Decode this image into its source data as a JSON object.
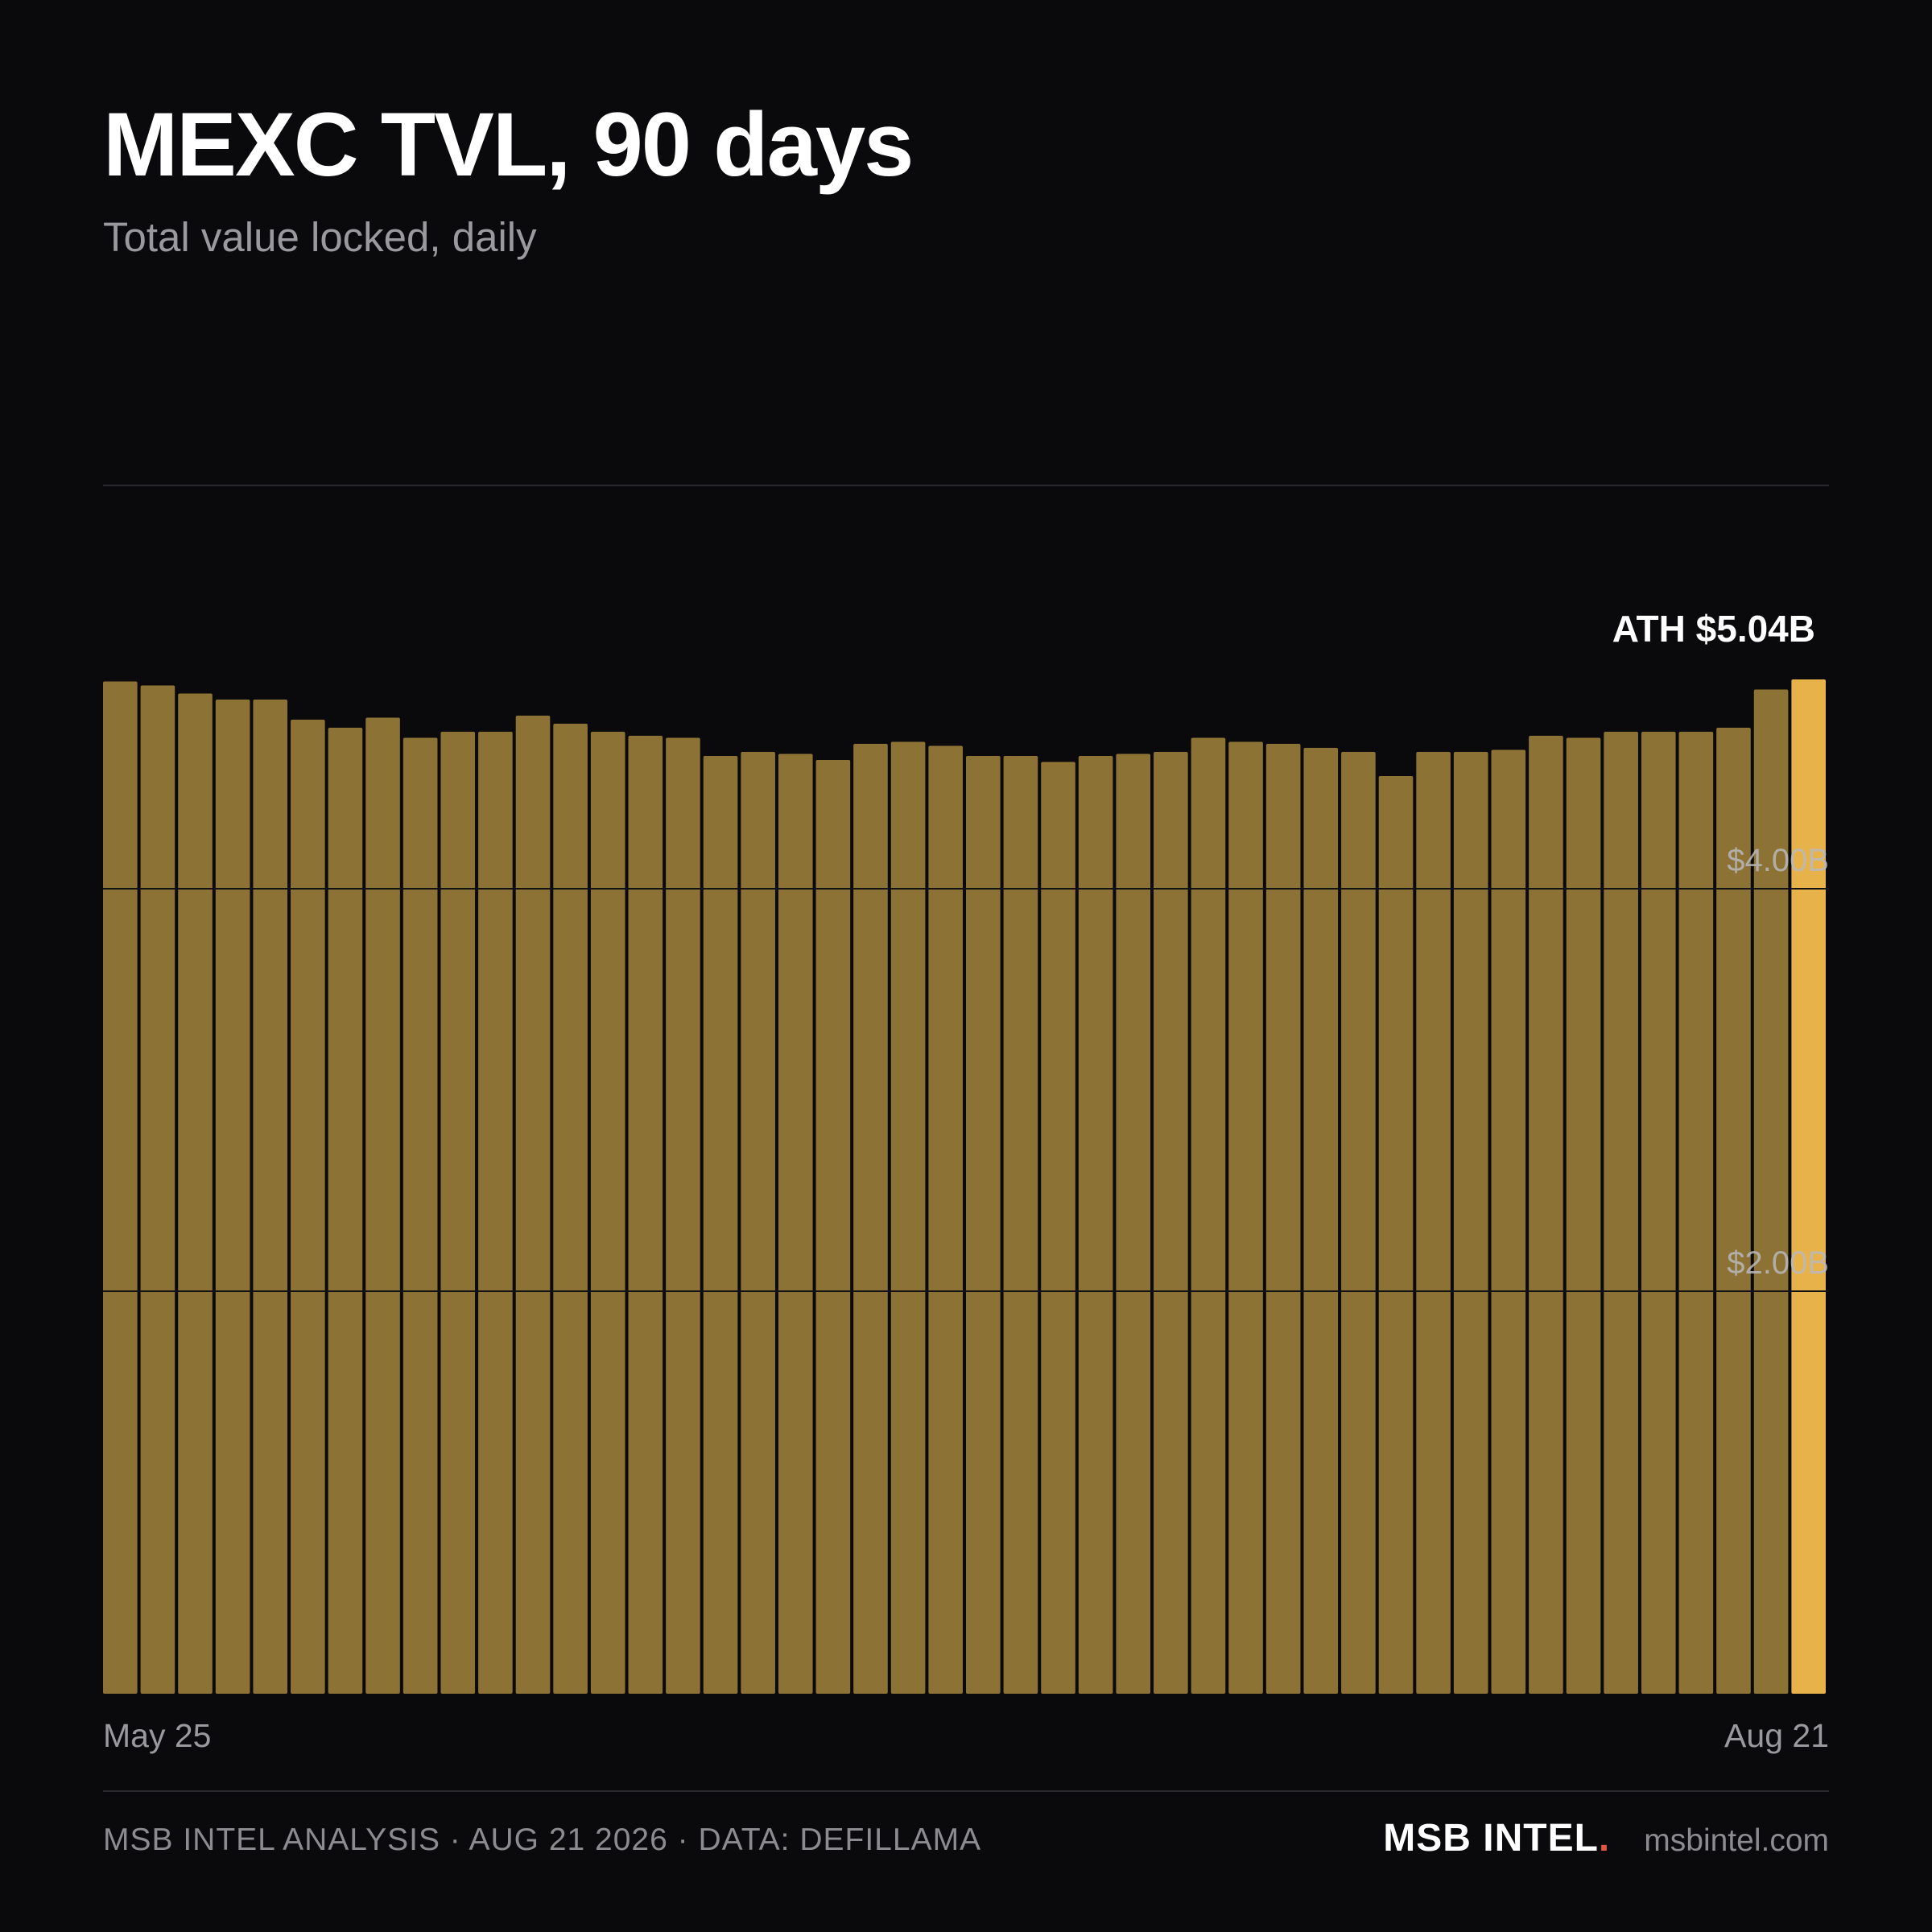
{
  "header": {
    "title": "MEXC TVL, 90 days",
    "subtitle": "Total value locked, daily"
  },
  "footer": {
    "source": "MSB INTEL ANALYSIS · AUG 21 2026 · DATA: DEFILLAMA",
    "brand_name": "MSB INTEL",
    "brand_dot": ".",
    "url": "msbintel.com"
  },
  "colors": {
    "background": "#0a0a0c",
    "bar": "#8c7234",
    "bar_highlight": "#e8b24a",
    "grid": "#2a2a2e",
    "brand_dot": "#e2553e"
  },
  "chart_data": {
    "type": "bar",
    "ylim": [
      0,
      6.0
    ],
    "y_unit": "$B",
    "yticks": [
      {
        "value": 2.0,
        "label": "$2.00B"
      },
      {
        "value": 4.0,
        "label": "$4.00B"
      }
    ],
    "x_labels": {
      "start": "May 25",
      "end": "Aug 21"
    },
    "values": [
      5.03,
      5.01,
      4.97,
      4.94,
      4.94,
      4.84,
      4.8,
      4.85,
      4.75,
      4.78,
      4.78,
      4.86,
      4.82,
      4.78,
      4.76,
      4.75,
      4.66,
      4.68,
      4.67,
      4.64,
      4.72,
      4.73,
      4.71,
      4.66,
      4.66,
      4.63,
      4.66,
      4.67,
      4.68,
      4.75,
      4.73,
      4.72,
      4.7,
      4.68,
      4.56,
      4.68,
      4.68,
      4.69,
      4.76,
      4.75,
      4.78,
      4.78,
      4.78,
      4.8,
      4.99,
      5.04
    ],
    "highlight_index": 45,
    "annotation": {
      "text": "ATH $5.04B",
      "index": 45
    }
  }
}
